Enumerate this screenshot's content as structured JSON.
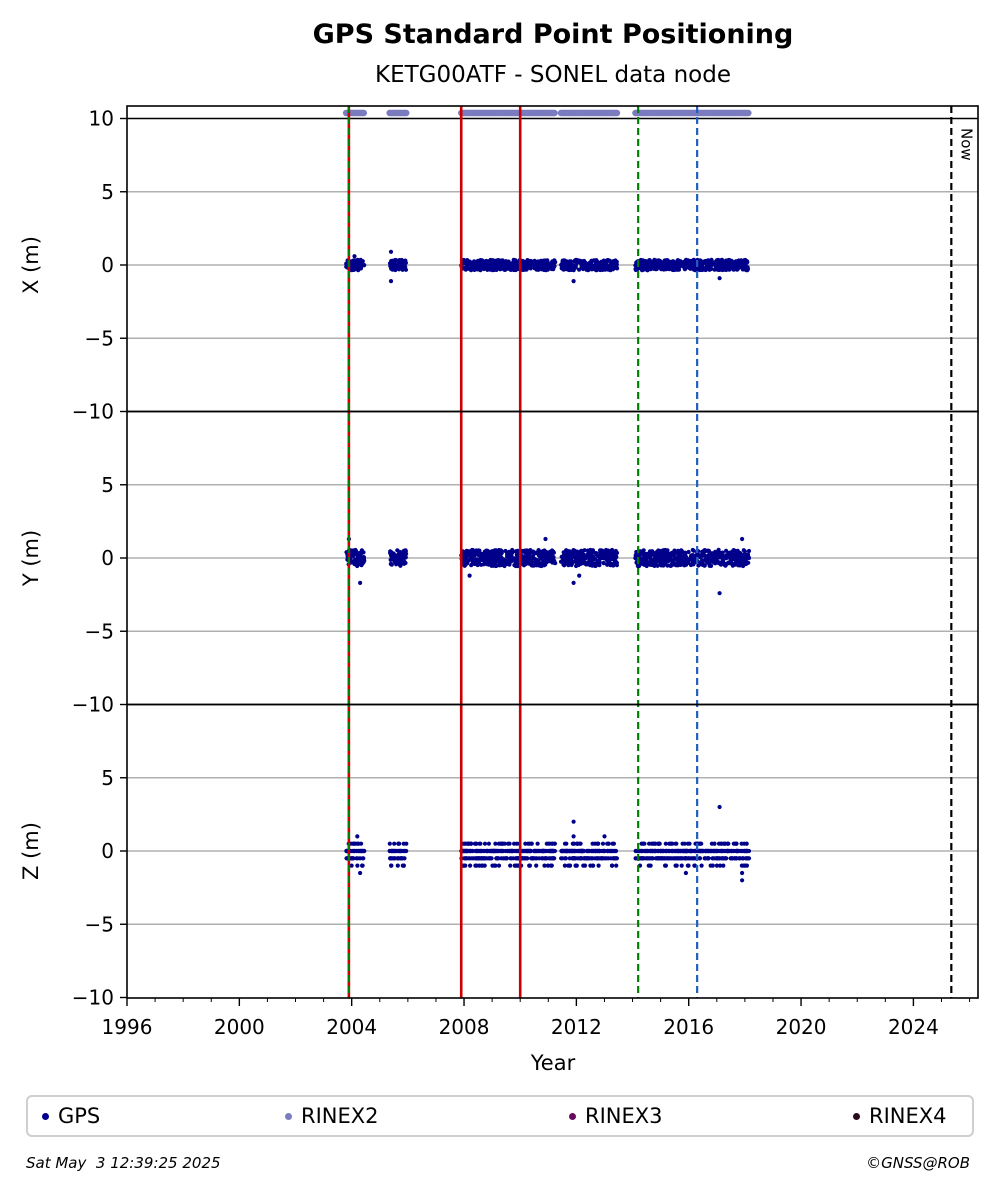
{
  "chart_data": {
    "type": "scatter",
    "title": "GPS Standard Point Positioning",
    "subtitle": "KETG00ATF - SONEL data node",
    "xlabel": "Year",
    "xlim": [
      1996,
      2026.3
    ],
    "xticks": [
      "1996",
      "2000",
      "2004",
      "2008",
      "2012",
      "2016",
      "2020",
      "2024"
    ],
    "panels": [
      {
        "ylabel": "X (m)",
        "ylim": [
          -10,
          10
        ],
        "yticks": [
          "10",
          "5",
          "0",
          "−5",
          "−10"
        ]
      },
      {
        "ylabel": "Y (m)",
        "ylim": [
          -10,
          10
        ],
        "yticks": [
          "5",
          "0",
          "−5",
          "−10"
        ]
      },
      {
        "ylabel": "Z (m)",
        "ylim": [
          -10,
          10
        ],
        "yticks": [
          "5",
          "0",
          "−5",
          "−10"
        ]
      }
    ],
    "grid": true,
    "data_segments": [
      {
        "start": 2003.8,
        "end": 2004.45
      },
      {
        "start": 2005.35,
        "end": 2005.95
      },
      {
        "start": 2007.9,
        "end": 2010.0
      },
      {
        "start": 2010.0,
        "end": 2011.25
      },
      {
        "start": 2011.45,
        "end": 2013.45
      },
      {
        "start": 2014.1,
        "end": 2018.15
      }
    ],
    "series_spread_m": {
      "x": 0.35,
      "y": 0.55,
      "z": 0.5
    },
    "outliers": {
      "x": [
        [
          2005.4,
          -1.1
        ],
        [
          2011.9,
          -1.1
        ],
        [
          2017.1,
          -0.9
        ],
        [
          2005.4,
          0.9
        ],
        [
          2004.1,
          0.6
        ]
      ],
      "y": [
        [
          2017.1,
          -2.4
        ],
        [
          2011.9,
          -1.7
        ],
        [
          2004.3,
          -1.7
        ],
        [
          2012.1,
          -1.2
        ],
        [
          2017.9,
          1.3
        ],
        [
          2010.9,
          1.3
        ],
        [
          2003.9,
          1.3
        ],
        [
          2008.2,
          -1.2
        ]
      ],
      "z": [
        [
          2017.1,
          3.0
        ],
        [
          2011.9,
          2.0
        ],
        [
          2011.9,
          1.0
        ],
        [
          2013.0,
          1.0
        ],
        [
          2004.2,
          1.0
        ],
        [
          2017.9,
          -2.0
        ],
        [
          2015.9,
          -1.5
        ],
        [
          2004.3,
          -1.5
        ],
        [
          2017.9,
          -1.5
        ]
      ]
    },
    "vlines": [
      {
        "x": 2003.9,
        "color": "#cc0000",
        "style": "solid"
      },
      {
        "x": 2003.9,
        "color": "#008000",
        "style": "dashed"
      },
      {
        "x": 2007.9,
        "color": "#cc0000",
        "style": "solid"
      },
      {
        "x": 2010.0,
        "color": "#cc0000",
        "style": "solid"
      },
      {
        "x": 2014.2,
        "color": "#008000",
        "style": "dashed"
      },
      {
        "x": 2016.3,
        "color": "#1f5fbf",
        "style": "dashed"
      },
      {
        "x": 2025.35,
        "color": "#000000",
        "style": "dashed"
      }
    ],
    "now_label": "Now",
    "legend": [
      {
        "name": "GPS",
        "color": "#00008b"
      },
      {
        "name": "RINEX2",
        "color": "#7b7bbf"
      },
      {
        "name": "RINEX3",
        "color": "#6a0a5e"
      },
      {
        "name": "RINEX4",
        "color": "#2a0a1e"
      }
    ],
    "colors": {
      "gps": "#00008b",
      "rinex2": "#7b7bbf",
      "grid": "#b0b0b0"
    }
  },
  "footer": {
    "timestamp": "Sat May  3 12:39:25 2025",
    "credit": "©GNSS@ROB"
  }
}
